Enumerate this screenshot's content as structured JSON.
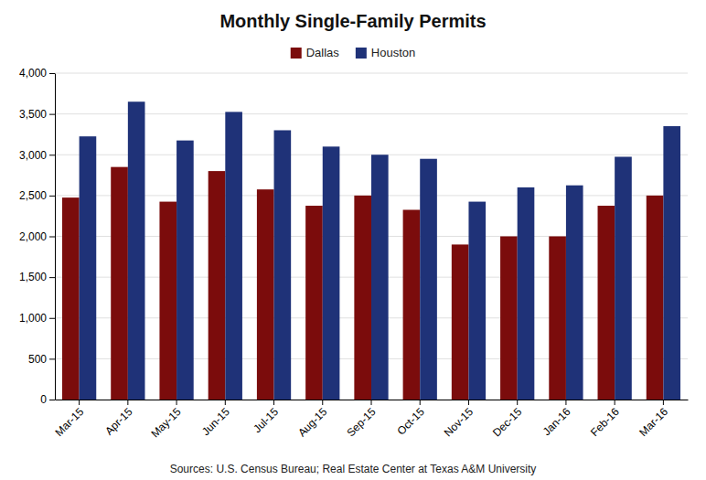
{
  "chart_data": {
    "type": "bar",
    "title": "Monthly Single-Family Permits",
    "categories": [
      "Mar-15",
      "Apr-15",
      "May-15",
      "Jun-15",
      "Jul-15",
      "Aug-15",
      "Sep-15",
      "Oct-15",
      "Nov-15",
      "Dec-15",
      "Jan-16",
      "Feb-16",
      "Mar-16"
    ],
    "series": [
      {
        "name": "Dallas",
        "color": "#7b0c0c",
        "values": [
          2475,
          2850,
          2425,
          2800,
          2575,
          2375,
          2500,
          2325,
          1900,
          2000,
          2000,
          2375,
          2500
        ]
      },
      {
        "name": "Houston",
        "color": "#1f3278",
        "values": [
          3225,
          3650,
          3175,
          3525,
          3300,
          3100,
          3000,
          2950,
          2425,
          2600,
          2625,
          2975,
          3350
        ]
      }
    ],
    "ylim": [
      0,
      4000
    ],
    "yticks": [
      0,
      500,
      {
        "value": 1000,
        "label": "1,000"
      },
      {
        "value": 1500,
        "label": "1,500"
      },
      {
        "value": 2000,
        "label": "2,000"
      },
      {
        "value": 2500,
        "label": "2,500"
      },
      {
        "value": 3000,
        "label": "3,000"
      },
      {
        "value": 3500,
        "label": "3,500"
      },
      {
        "value": 4000,
        "label": "4,000"
      }
    ],
    "grid": true,
    "legend": "top",
    "annotations": [
      "Sources: U.S. Census Bureau; Real Estate Center at Texas A&M University"
    ]
  }
}
